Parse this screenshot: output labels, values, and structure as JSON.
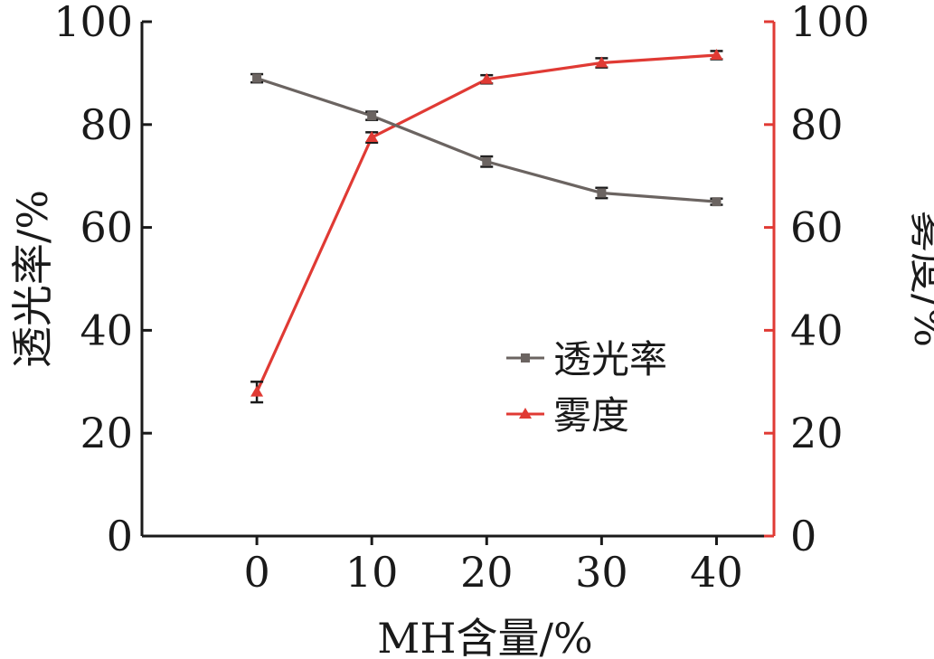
{
  "chart_data": {
    "type": "line",
    "xlabel": "MH含量/%",
    "ylabel_left": "透光率/%",
    "ylabel_right": "雾度/%",
    "x": [
      0,
      10,
      20,
      30,
      40
    ],
    "xlim": [
      -10,
      45
    ],
    "ylim_left": [
      0,
      100
    ],
    "ylim_right": [
      0,
      100
    ],
    "x_ticks": [
      "0",
      "10",
      "20",
      "30",
      "40"
    ],
    "y_ticks_left": [
      "0",
      "20",
      "40",
      "60",
      "80",
      "100"
    ],
    "y_ticks_right": [
      "0",
      "20",
      "40",
      "60",
      "80",
      "100"
    ],
    "grid": false,
    "legend_position": "center-right",
    "series": [
      {
        "name": "透光率",
        "axis": "left",
        "marker": "square",
        "color": "#6b6461",
        "values": [
          89.0,
          81.7,
          72.8,
          66.7,
          65.0
        ],
        "errors": [
          0.8,
          0.8,
          1.0,
          1.0,
          0.6
        ]
      },
      {
        "name": "雾度",
        "axis": "right",
        "marker": "triangle",
        "color": "#e03a34",
        "values": [
          28.0,
          77.5,
          88.8,
          92.0,
          93.5
        ],
        "errors": [
          2.0,
          1.0,
          0.8,
          0.9,
          0.8
        ]
      }
    ]
  }
}
